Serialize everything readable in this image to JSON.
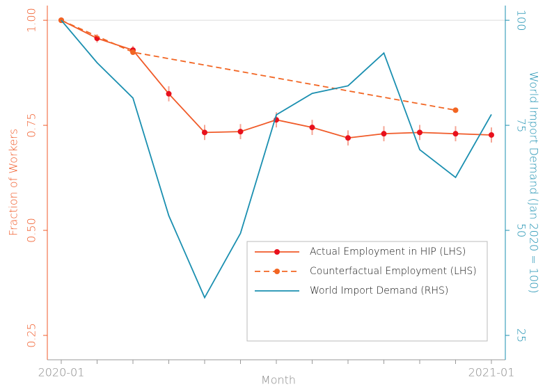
{
  "chart_data": {
    "type": "line",
    "x_label": "Month",
    "y_label": "Fraction of Workers",
    "y2_label": "World Import Demand (Jan 2020 = 100)",
    "categories": [
      "2020-01",
      null,
      null,
      null,
      null,
      null,
      null,
      null,
      null,
      null,
      null,
      null,
      "2021-01"
    ],
    "ylim": [
      0.192,
      1.035
    ],
    "yticks": [
      {
        "value": 0.25,
        "label": "0.25"
      },
      {
        "value": 0.5,
        "label": "0.50"
      },
      {
        "value": 0.75,
        "label": "0.75"
      },
      {
        "value": 1,
        "label": "1.00"
      }
    ],
    "y2lim": [
      19.2,
      103.5
    ],
    "y2ticks": [
      25,
      50,
      75,
      100
    ],
    "hline": 1,
    "legend": "lower right",
    "y_color": "#f05a28",
    "y2_color": "#1a8fb0",
    "series": [
      {
        "name": "Actual Employment in HIP (LHS)",
        "color": "#f05a28",
        "marker_color": "#e8101c",
        "style": "solid",
        "marker": true,
        "values": [
          1.0,
          0.957,
          0.929,
          0.825,
          0.733,
          0.735,
          0.763,
          0.745,
          0.72,
          0.73,
          0.733,
          0.73,
          0.727
        ],
        "errors": [
          0,
          0.01,
          0.01,
          0.018,
          0.018,
          0.018,
          0.018,
          0.018,
          0.018,
          0.018,
          0.018,
          0.018,
          0.018
        ],
        "error_color": "#f5a595"
      },
      {
        "name": "Counterfactual Employment (LHS)",
        "color": "#f26522",
        "marker_color": "#f26522",
        "style": "dashed",
        "marker": true,
        "connect_gaps": true,
        "values": [
          1.0,
          null,
          0.924,
          null,
          null,
          null,
          null,
          null,
          null,
          null,
          null,
          0.786,
          null
        ]
      },
      {
        "name": "World Import Demand (RHS)",
        "color": "#1a8fb0",
        "style": "solid",
        "marker": false,
        "axis": "y2",
        "values": [
          100,
          89.9,
          81.5,
          53.5,
          34,
          49.3,
          77.5,
          82.6,
          84.4,
          92.2,
          69.2,
          62.6,
          77.6
        ]
      }
    ]
  }
}
